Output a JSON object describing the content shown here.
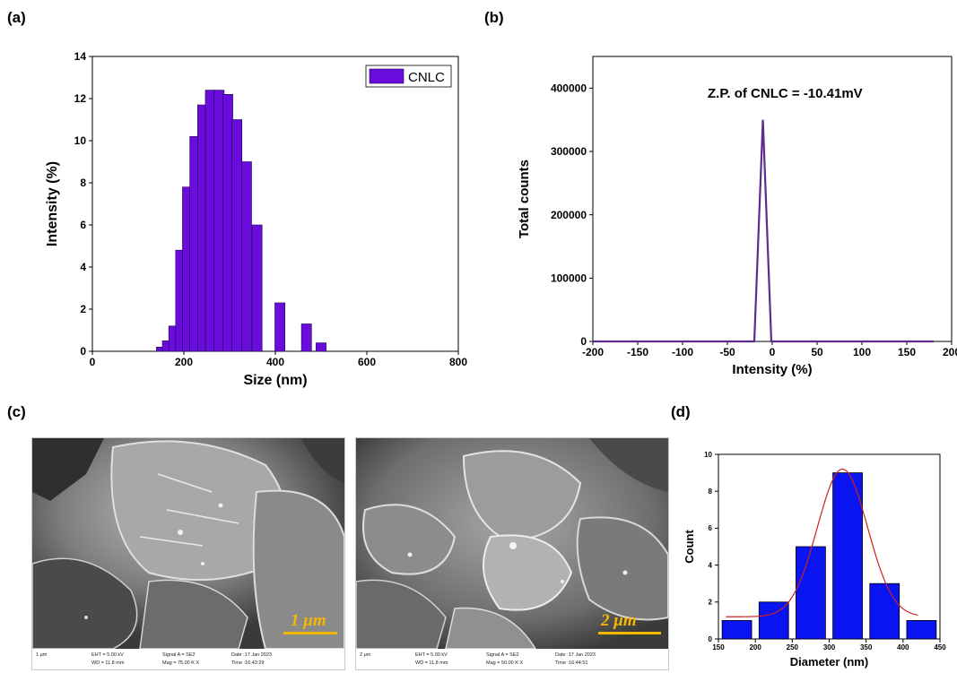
{
  "panels": {
    "a": "(a)",
    "b": "(b)",
    "c": "(c)",
    "d": "(d)"
  },
  "chart_data": [
    {
      "id": "a",
      "type": "bar",
      "xlabel": "Size (nm)",
      "ylabel": "Intensity (%)",
      "xlim": [
        0,
        800
      ],
      "ylim": [
        0,
        14
      ],
      "xticks": [
        0,
        200,
        400,
        600,
        800
      ],
      "yticks": [
        0,
        2,
        4,
        6,
        8,
        10,
        12,
        14
      ],
      "legend": "top-right",
      "bar_width": 22,
      "series": [
        {
          "name": "CNLC",
          "color": "#6a0ddc",
          "x": [
            151,
            164,
            178,
            193,
            208,
            224,
            241,
            258,
            277,
            296,
            316,
            337,
            360,
            384,
            410,
            438,
            468,
            500
          ],
          "values": [
            0.2,
            0.5,
            1.2,
            4.8,
            7.8,
            10.2,
            11.7,
            12.4,
            12.4,
            12.2,
            11.0,
            9.0,
            6.0,
            0,
            2.3,
            0,
            1.3,
            0.4
          ]
        }
      ]
    },
    {
      "id": "b",
      "type": "line",
      "xlabel": "Intensity (%)",
      "ylabel": "Total counts",
      "xlim": [
        -200,
        200
      ],
      "ylim": [
        0,
        450000
      ],
      "xticks": [
        -200,
        -150,
        -100,
        -50,
        0,
        50,
        100,
        150,
        200
      ],
      "yticks": [
        0,
        100000,
        200000,
        300000,
        400000
      ],
      "annotation": "Z.P. of CNLC = -10.41mV",
      "series": [
        {
          "color": "#5b2d90",
          "x": [
            -200,
            -20,
            -10.41,
            -1,
            180
          ],
          "y": [
            0,
            0,
            350000,
            0,
            0
          ]
        }
      ]
    },
    {
      "id": "d",
      "type": "bar",
      "xlabel": "Diameter (nm)",
      "ylabel": "Count",
      "xlim": [
        150,
        450
      ],
      "ylim": [
        0,
        10
      ],
      "xticks": [
        150,
        200,
        250,
        300,
        350,
        400,
        450
      ],
      "yticks": [
        0,
        2,
        4,
        6,
        8,
        10
      ],
      "bar_width": 40,
      "series": [
        {
          "color": "#0a14f0",
          "x": [
            175,
            225,
            275,
            325,
            375,
            425
          ],
          "values": [
            1,
            2,
            5,
            9,
            3,
            1
          ]
        }
      ],
      "fit": {
        "type": "gaussian",
        "color": "#cc2222",
        "x_range": [
          160,
          420
        ],
        "center": 318,
        "sigma": 34,
        "amplitude": 8.0,
        "baseline": 1.2
      }
    }
  ],
  "sem_images": [
    {
      "scale_label": "1 μm",
      "info": {
        "bar": "1 μm",
        "eht": "EHT = 5.00 kV",
        "wd": "WD = 11.8 mm",
        "signal": "Signal A = SE2",
        "mag": "Mag = 75.00 K X",
        "date": "Date :17 Jan 2023",
        "time": "Time :16:43:29"
      }
    },
    {
      "scale_label": "2 μm",
      "info": {
        "bar": "2 μm",
        "eht": "EHT = 5.00 kV",
        "wd": "WD = 11.8 mm",
        "signal": "Signal A = SE2",
        "mag": "Mag = 50.00 K X",
        "date": "Date :17 Jan 2023",
        "time": "Time :16:44:51"
      }
    }
  ]
}
